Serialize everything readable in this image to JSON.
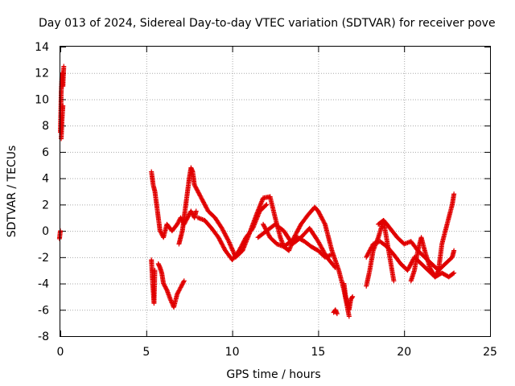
{
  "chart_data": {
    "type": "scatter",
    "title": "Day 013 of 2024, Sidereal Day-to-day VTEC variation (SDTVAR) for receiver pove",
    "xlabel": "GPS time / hours",
    "ylabel": "SDTVAR / TECUs",
    "xlim": [
      0,
      25
    ],
    "ylim": [
      -8,
      14
    ],
    "xticks": [
      0,
      5,
      10,
      15,
      20,
      25
    ],
    "yticks": [
      -8,
      -6,
      -4,
      -2,
      0,
      2,
      4,
      6,
      8,
      10,
      12,
      14
    ],
    "grid": true,
    "marker": "+",
    "color": "#e00000",
    "series": [
      {
        "name": "t1",
        "x": [
          0.0,
          0.05,
          0.1,
          0.15,
          0.2
        ],
        "y": [
          7.5,
          10.5,
          12.0,
          11.0,
          12.5
        ]
      },
      {
        "name": "t2",
        "x": [
          0.05,
          0.1,
          0.15
        ],
        "y": [
          7.0,
          8.5,
          9.5
        ]
      },
      {
        "name": "t3",
        "x": [
          -0.05,
          0.0
        ],
        "y": [
          -0.6,
          0.0
        ]
      },
      {
        "name": "t4",
        "x": [
          5.3,
          5.4,
          5.5,
          5.6,
          5.7,
          5.8,
          6.0,
          6.2,
          6.5,
          6.8,
          7.0,
          7.2,
          7.4,
          7.6,
          7.8,
          7.9
        ],
        "y": [
          4.5,
          3.5,
          3.0,
          2.0,
          1.0,
          0.0,
          -0.5,
          0.5,
          0.0,
          0.5,
          1.0,
          0.5,
          1.0,
          1.5,
          1.0,
          1.5
        ]
      },
      {
        "name": "t5",
        "x": [
          5.3,
          5.35,
          5.4,
          5.45,
          5.5
        ],
        "y": [
          -2.2,
          -3.5,
          -4.5,
          -5.5,
          -3.0
        ]
      },
      {
        "name": "t6",
        "x": [
          5.7,
          5.8,
          5.9,
          6.0,
          6.2,
          6.4,
          6.6,
          6.8,
          7.0,
          7.2
        ],
        "y": [
          -2.5,
          -2.8,
          -3.2,
          -4.0,
          -4.5,
          -5.2,
          -5.8,
          -4.8,
          -4.3,
          -3.8
        ]
      },
      {
        "name": "t7",
        "x": [
          6.9,
          7.0,
          7.1,
          7.2,
          7.3,
          7.4,
          7.5,
          7.6,
          7.7,
          7.8
        ],
        "y": [
          -1.0,
          -0.5,
          0.0,
          1.0,
          2.0,
          3.0,
          4.0,
          4.8,
          4.5,
          3.5
        ]
      },
      {
        "name": "t8",
        "x": [
          7.8,
          8.2,
          8.6,
          9.0,
          9.4,
          9.8,
          10.2,
          10.6,
          11.0,
          11.4,
          11.8,
          12.2
        ],
        "y": [
          3.5,
          2.5,
          1.5,
          1.0,
          0.2,
          -0.8,
          -2.0,
          -1.5,
          -0.2,
          1.2,
          2.5,
          2.6
        ]
      },
      {
        "name": "t9",
        "x": [
          8.0,
          8.4,
          8.8,
          9.2,
          9.6,
          10.0,
          10.4,
          10.8,
          11.2,
          11.6,
          12.0
        ],
        "y": [
          1.0,
          0.8,
          0.2,
          -0.5,
          -1.5,
          -2.2,
          -1.5,
          -0.5,
          0.2,
          1.5,
          2.0
        ]
      },
      {
        "name": "t10",
        "x": [
          12.2,
          12.5,
          12.8,
          13.0,
          13.3,
          13.6,
          14.0,
          14.4,
          14.8,
          15.0,
          15.4,
          15.8,
          16.2,
          16.5,
          16.8
        ],
        "y": [
          2.6,
          1.0,
          -0.5,
          -1.2,
          -1.5,
          -0.5,
          0.5,
          1.2,
          1.8,
          1.5,
          0.5,
          -1.5,
          -3.0,
          -4.5,
          -6.5
        ]
      },
      {
        "name": "t11",
        "x": [
          11.8,
          12.2,
          12.6,
          13.0,
          13.4,
          13.8,
          14.2,
          14.6,
          15.0,
          15.4,
          15.8
        ],
        "y": [
          0.5,
          -0.5,
          -1.0,
          -1.2,
          -0.8,
          -0.5,
          -0.8,
          -1.2,
          -1.5,
          -2.0,
          -1.8
        ]
      },
      {
        "name": "t12",
        "x": [
          11.5,
          12.0,
          12.5,
          13.0,
          13.5,
          14.0,
          14.5,
          15.0,
          15.5,
          16.0
        ],
        "y": [
          -0.5,
          0.0,
          0.5,
          0.0,
          -1.0,
          -0.5,
          0.2,
          -0.8,
          -2.0,
          -2.8
        ]
      },
      {
        "name": "t13",
        "x": [
          15.9,
          16.0,
          16.1
        ],
        "y": [
          -6.2,
          -6.0,
          -6.3
        ]
      },
      {
        "name": "t14",
        "x": [
          16.5,
          16.6,
          16.7,
          16.8,
          16.9,
          17.0
        ],
        "y": [
          -4.0,
          -5.0,
          -5.5,
          -6.0,
          -5.2,
          -5.0
        ]
      },
      {
        "name": "t15",
        "x": [
          17.8,
          18.0,
          18.2,
          18.5,
          18.8,
          19.1,
          19.4
        ],
        "y": [
          -4.2,
          -3.0,
          -1.5,
          -0.5,
          0.8,
          -1.5,
          -3.8
        ]
      },
      {
        "name": "t16",
        "x": [
          18.5,
          18.8,
          19.0,
          19.3,
          19.6,
          20.0,
          20.4,
          20.8,
          21.2,
          21.6,
          22.0,
          22.4,
          22.8,
          22.9
        ],
        "y": [
          0.5,
          0.8,
          0.5,
          0.0,
          -0.5,
          -1.0,
          -0.8,
          -1.5,
          -2.0,
          -2.5,
          -3.0,
          -2.5,
          -2.0,
          -1.5
        ]
      },
      {
        "name": "t17",
        "x": [
          17.8,
          18.2,
          18.6,
          19.0,
          19.4,
          19.8,
          20.2,
          20.6,
          21.0,
          21.4,
          21.8,
          22.2,
          22.6,
          22.9
        ],
        "y": [
          -2.0,
          -1.0,
          -0.8,
          -1.2,
          -1.8,
          -2.5,
          -3.0,
          -2.0,
          -2.5,
          -3.0,
          -3.5,
          -3.2,
          -3.5,
          -3.2
        ]
      },
      {
        "name": "t18",
        "x": [
          20.4,
          20.6,
          20.8,
          21.0,
          21.2,
          21.5,
          21.8,
          22.0,
          22.2,
          22.4,
          22.6,
          22.8,
          22.9
        ],
        "y": [
          -3.8,
          -3.0,
          -1.5,
          -0.5,
          -1.5,
          -2.8,
          -3.5,
          -3.0,
          -1.0,
          0.0,
          1.0,
          2.0,
          2.8
        ]
      }
    ]
  }
}
